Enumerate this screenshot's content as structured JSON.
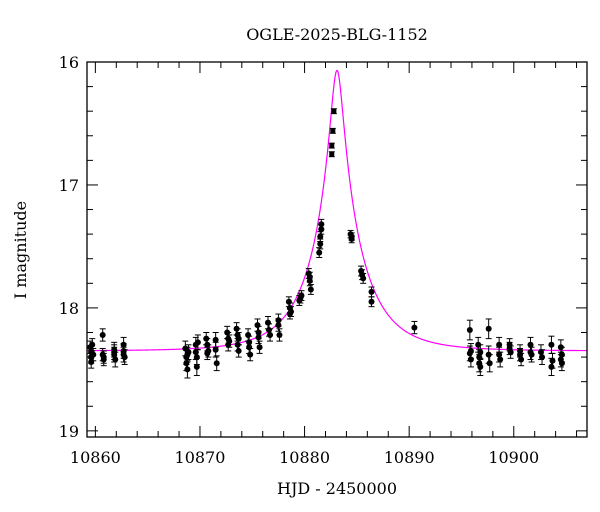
{
  "chart_data": {
    "type": "scatter",
    "title": "OGLE-2025-BLG-1152",
    "xlabel": "HJD - 2450000",
    "ylabel": "I magnitude",
    "xlim": [
      10859.2,
      10907.0
    ],
    "ylim": [
      16.0,
      19.05
    ],
    "y_inverted": true,
    "x_major_ticks": [
      10860,
      10870,
      10880,
      10890,
      10900
    ],
    "x_tick_labels": [
      "10860",
      "10870",
      "10880",
      "10890",
      "10900"
    ],
    "x_minor_step": 2,
    "y_major_ticks": [
      16,
      17,
      18,
      19
    ],
    "y_tick_labels": [
      "16",
      "17",
      "18",
      "19"
    ],
    "y_minor_step": 0.2,
    "grid": false,
    "colors": {
      "points": "#000000",
      "model": "#ff00ff"
    },
    "model_curve": {
      "type": "point-lens",
      "t0": 10883.1,
      "tE": 4.7,
      "u0": 0.123,
      "I_base": 18.35
    },
    "points": [
      [
        10859.5,
        18.32,
        0.05
      ],
      [
        10859.6,
        18.36,
        0.05
      ],
      [
        10859.6,
        18.4,
        0.05
      ],
      [
        10859.7,
        18.3,
        0.05
      ],
      [
        10859.6,
        18.44,
        0.05
      ],
      [
        10859.8,
        18.38,
        0.05
      ],
      [
        10860.7,
        18.22,
        0.05
      ],
      [
        10860.7,
        18.38,
        0.05
      ],
      [
        10860.8,
        18.4,
        0.05
      ],
      [
        10860.8,
        18.42,
        0.05
      ],
      [
        10861.8,
        18.34,
        0.06
      ],
      [
        10861.8,
        18.38,
        0.06
      ],
      [
        10861.9,
        18.42,
        0.06
      ],
      [
        10861.8,
        18.36,
        0.06
      ],
      [
        10862.7,
        18.3,
        0.06
      ],
      [
        10862.7,
        18.38,
        0.06
      ],
      [
        10862.8,
        18.4,
        0.06
      ],
      [
        10862.7,
        18.35,
        0.06
      ],
      [
        10868.6,
        18.33,
        0.06
      ],
      [
        10868.7,
        18.4,
        0.06
      ],
      [
        10868.7,
        18.45,
        0.06
      ],
      [
        10868.8,
        18.5,
        0.07
      ],
      [
        10868.8,
        18.38,
        0.06
      ],
      [
        10868.9,
        18.36,
        0.06
      ],
      [
        10869.6,
        18.3,
        0.06
      ],
      [
        10869.6,
        18.36,
        0.06
      ],
      [
        10869.7,
        18.48,
        0.07
      ],
      [
        10869.7,
        18.4,
        0.06
      ],
      [
        10869.8,
        18.28,
        0.06
      ],
      [
        10870.6,
        18.25,
        0.05
      ],
      [
        10870.7,
        18.3,
        0.05
      ],
      [
        10870.7,
        18.37,
        0.05
      ],
      [
        10870.8,
        18.35,
        0.05
      ],
      [
        10871.5,
        18.26,
        0.06
      ],
      [
        10871.5,
        18.34,
        0.06
      ],
      [
        10871.6,
        18.45,
        0.06
      ],
      [
        10872.6,
        18.2,
        0.05
      ],
      [
        10872.7,
        18.25,
        0.05
      ],
      [
        10872.7,
        18.3,
        0.05
      ],
      [
        10872.8,
        18.27,
        0.05
      ],
      [
        10873.5,
        18.17,
        0.05
      ],
      [
        10873.6,
        18.22,
        0.05
      ],
      [
        10873.6,
        18.3,
        0.05
      ],
      [
        10873.7,
        18.35,
        0.05
      ],
      [
        10873.7,
        18.25,
        0.05
      ],
      [
        10874.6,
        18.22,
        0.05
      ],
      [
        10874.7,
        18.28,
        0.05
      ],
      [
        10874.7,
        18.32,
        0.05
      ],
      [
        10874.8,
        18.38,
        0.05
      ],
      [
        10875.5,
        18.14,
        0.05
      ],
      [
        10875.6,
        18.2,
        0.05
      ],
      [
        10875.6,
        18.24,
        0.05
      ],
      [
        10875.7,
        18.32,
        0.05
      ],
      [
        10876.5,
        18.12,
        0.05
      ],
      [
        10876.6,
        18.18,
        0.05
      ],
      [
        10876.7,
        18.22,
        0.05
      ],
      [
        10877.5,
        18.1,
        0.05
      ],
      [
        10877.5,
        18.14,
        0.05
      ],
      [
        10877.6,
        18.22,
        0.05
      ],
      [
        10878.5,
        17.95,
        0.04
      ],
      [
        10878.6,
        18.0,
        0.04
      ],
      [
        10878.6,
        18.05,
        0.04
      ],
      [
        10878.7,
        18.03,
        0.04
      ],
      [
        10879.5,
        17.94,
        0.04
      ],
      [
        10879.6,
        17.92,
        0.04
      ],
      [
        10879.7,
        17.9,
        0.04
      ],
      [
        10880.4,
        17.72,
        0.04
      ],
      [
        10880.5,
        17.75,
        0.04
      ],
      [
        10880.5,
        17.78,
        0.04
      ],
      [
        10880.6,
        17.85,
        0.04
      ],
      [
        10881.4,
        17.55,
        0.04
      ],
      [
        10881.5,
        17.48,
        0.04
      ],
      [
        10881.5,
        17.42,
        0.04
      ],
      [
        10881.6,
        17.36,
        0.04
      ],
      [
        10881.6,
        17.32,
        0.04
      ],
      [
        10882.6,
        16.75,
        0.02
      ],
      [
        10882.6,
        16.68,
        0.02
      ],
      [
        10882.7,
        16.56,
        0.02
      ],
      [
        10882.8,
        16.4,
        0.02
      ],
      [
        10884.4,
        17.4,
        0.03
      ],
      [
        10884.5,
        17.42,
        0.03
      ],
      [
        10884.5,
        17.44,
        0.03
      ],
      [
        10885.4,
        17.7,
        0.04
      ],
      [
        10885.5,
        17.73,
        0.04
      ],
      [
        10885.6,
        17.76,
        0.04
      ],
      [
        10886.4,
        17.87,
        0.04
      ],
      [
        10886.4,
        17.95,
        0.04
      ],
      [
        10890.5,
        18.16,
        0.05
      ],
      [
        10895.8,
        18.18,
        0.08
      ],
      [
        10895.8,
        18.37,
        0.06
      ],
      [
        10895.9,
        18.42,
        0.06
      ],
      [
        10895.9,
        18.35,
        0.06
      ],
      [
        10896.6,
        18.3,
        0.06
      ],
      [
        10896.7,
        18.4,
        0.06
      ],
      [
        10896.7,
        18.45,
        0.07
      ],
      [
        10896.8,
        18.48,
        0.07
      ],
      [
        10896.8,
        18.36,
        0.06
      ],
      [
        10897.6,
        18.17,
        0.08
      ],
      [
        10897.6,
        18.38,
        0.07
      ],
      [
        10897.7,
        18.45,
        0.07
      ],
      [
        10898.6,
        18.3,
        0.06
      ],
      [
        10898.6,
        18.38,
        0.06
      ],
      [
        10898.7,
        18.42,
        0.06
      ],
      [
        10899.6,
        18.3,
        0.05
      ],
      [
        10899.6,
        18.33,
        0.05
      ],
      [
        10899.7,
        18.36,
        0.05
      ],
      [
        10900.6,
        18.35,
        0.05
      ],
      [
        10900.6,
        18.38,
        0.05
      ],
      [
        10900.7,
        18.42,
        0.05
      ],
      [
        10901.6,
        18.3,
        0.06
      ],
      [
        10901.6,
        18.36,
        0.06
      ],
      [
        10901.7,
        18.38,
        0.06
      ],
      [
        10902.6,
        18.36,
        0.06
      ],
      [
        10902.7,
        18.4,
        0.06
      ],
      [
        10903.6,
        18.3,
        0.07
      ],
      [
        10903.6,
        18.48,
        0.07
      ],
      [
        10903.7,
        18.43,
        0.06
      ],
      [
        10904.5,
        18.32,
        0.06
      ],
      [
        10904.5,
        18.42,
        0.06
      ],
      [
        10904.6,
        18.45,
        0.06
      ],
      [
        10904.6,
        18.38,
        0.06
      ]
    ]
  }
}
